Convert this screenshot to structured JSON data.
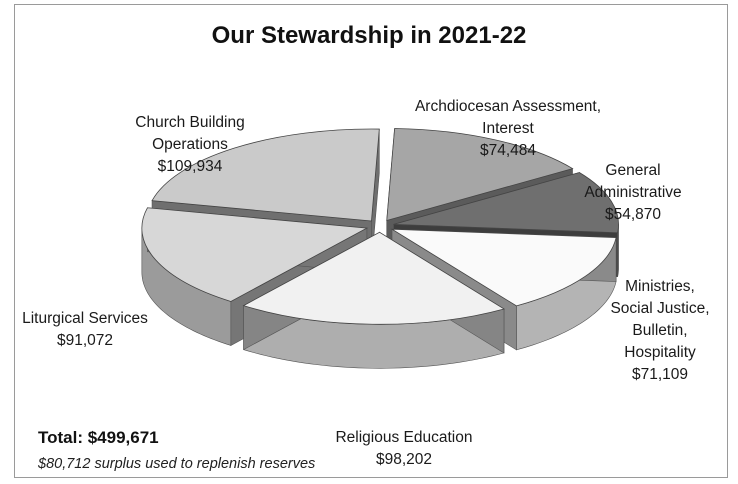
{
  "chart_data": {
    "type": "pie",
    "title": "Our Stewardship in 2021-22",
    "slices": [
      {
        "label": "Archdiocesan Assessment,\nInterest",
        "value_label": "$74,484",
        "value": 74484,
        "color": "#a6a6a6"
      },
      {
        "label": "General\nAdministrative",
        "value_label": "$54,870",
        "value": 54870,
        "color": "#6f6f6f"
      },
      {
        "label": "Ministries,\nSocial Justice,\nBulletin,\nHospitality",
        "value_label": "$71,109",
        "value": 71109,
        "color": "#fafafa"
      },
      {
        "label": "Religious Education",
        "value_label": "$98,202",
        "value": 98202,
        "color": "#f1f1f1"
      },
      {
        "label": "Liturgical Services",
        "value_label": "$91,072",
        "value": 91072,
        "color": "#d7d7d7"
      },
      {
        "label": "Church Building\nOperations",
        "value_label": "$109,934",
        "value": 109934,
        "color": "#cacaca"
      }
    ],
    "total_label": "Total:  $499,671",
    "note": "$80,712 surplus used to replenish reserves"
  }
}
